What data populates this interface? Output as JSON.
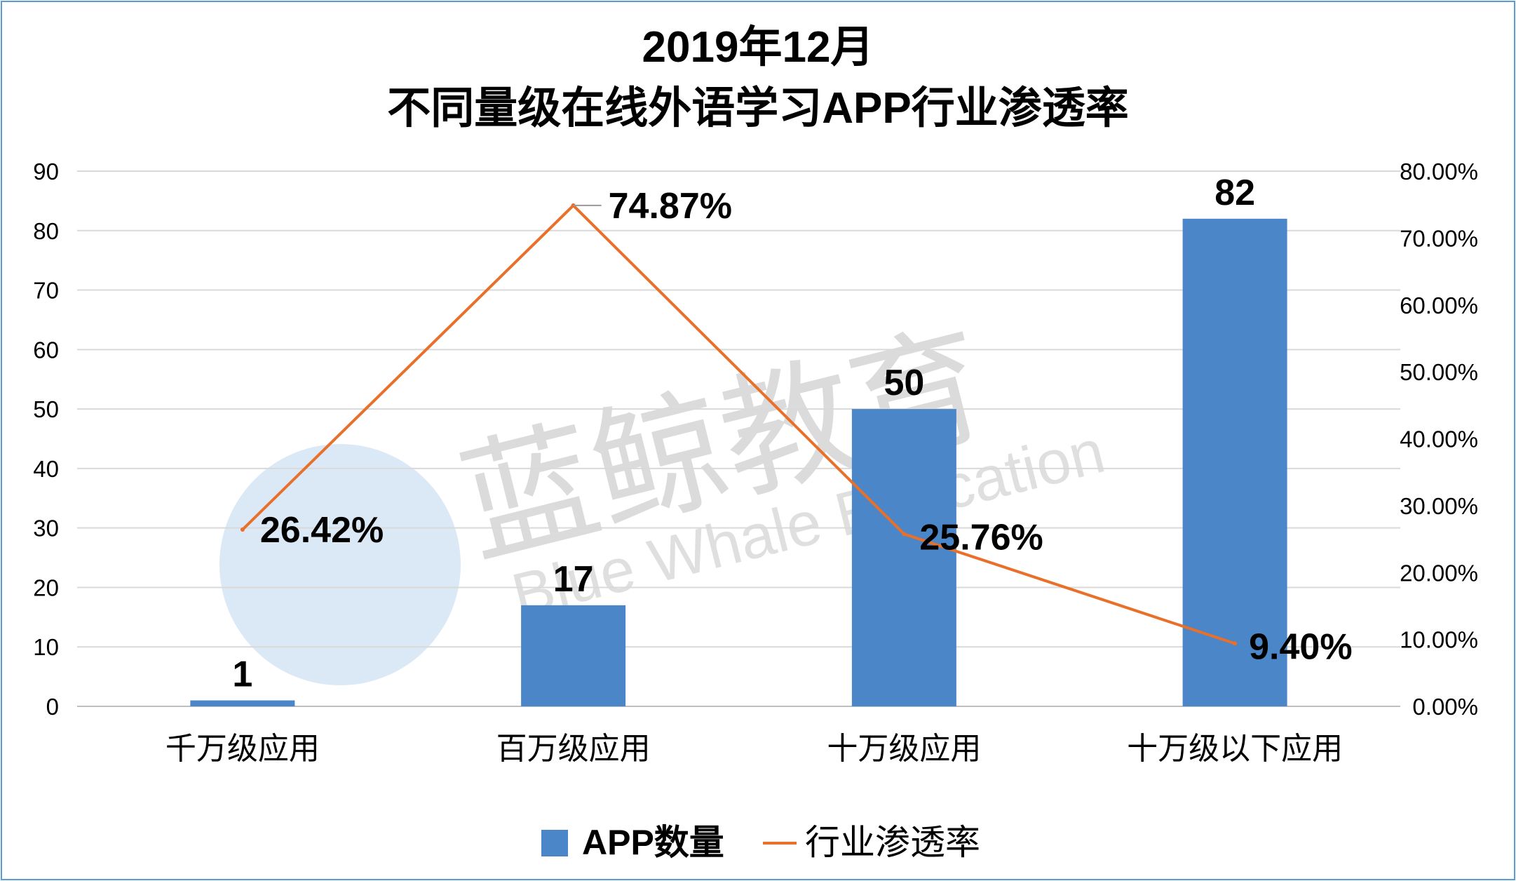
{
  "chart_data": {
    "type": "bar+line",
    "title_line1": "2019年12月",
    "title_line2": "不同量级在线外语学习APP行业渗透率",
    "categories": [
      "千万级应用",
      "百万级应用",
      "十万级应用",
      "十万级以下应用"
    ],
    "series": [
      {
        "name": "APP数量",
        "type": "bar",
        "axis": "left",
        "values": [
          1,
          17,
          50,
          82
        ],
        "labels": [
          "1",
          "17",
          "50",
          "82"
        ],
        "color": "#4a86c8"
      },
      {
        "name": "行业渗透率",
        "type": "line",
        "axis": "right",
        "values": [
          26.42,
          74.87,
          25.76,
          9.4
        ],
        "labels": [
          "26.42%",
          "74.87%",
          "25.76%",
          "9.40%"
        ],
        "color": "#e8702a"
      }
    ],
    "left_axis": {
      "ylim": [
        0,
        90
      ],
      "ticks": [
        "0",
        "10",
        "20",
        "30",
        "40",
        "50",
        "60",
        "70",
        "80",
        "90"
      ]
    },
    "right_axis": {
      "ylim": [
        0,
        80
      ],
      "ticks": [
        "0.00%",
        "10.00%",
        "20.00%",
        "30.00%",
        "40.00%",
        "50.00%",
        "60.00%",
        "70.00%",
        "80.00%"
      ]
    },
    "grid": true,
    "legend_position": "bottom"
  },
  "watermark": {
    "text_cn": "蓝鲸教育",
    "text_en": "Blue Whale Education"
  }
}
